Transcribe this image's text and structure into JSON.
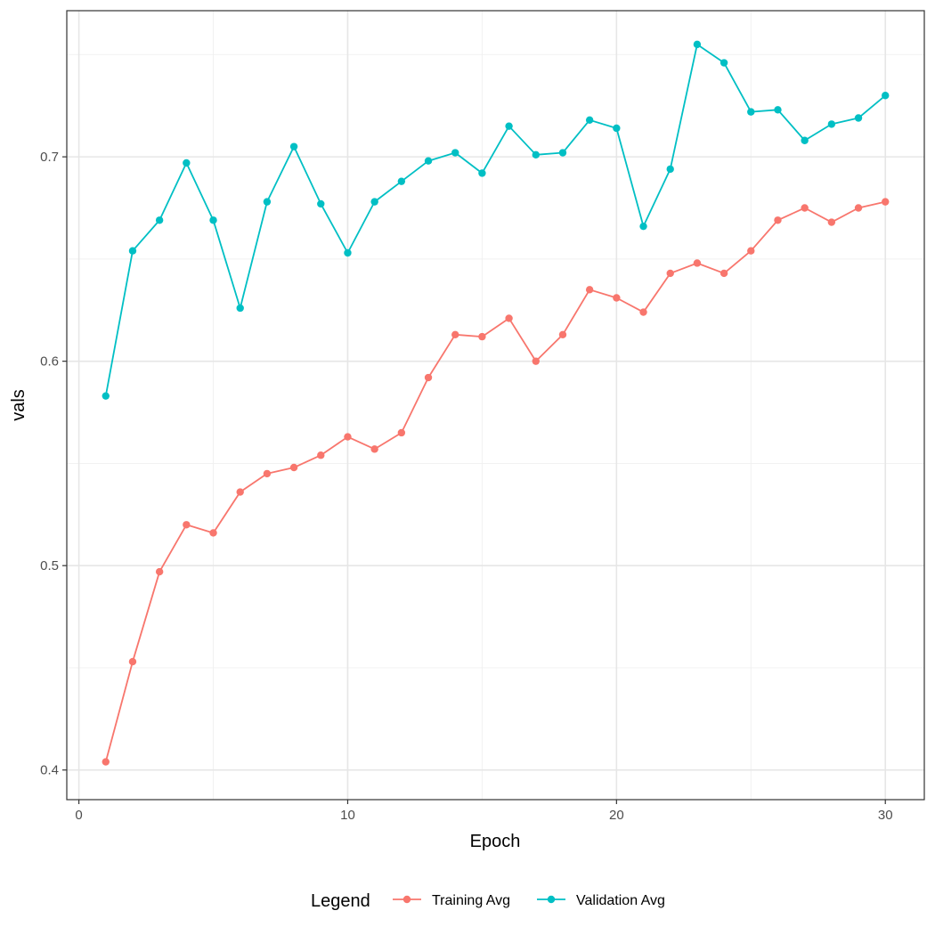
{
  "chart_data": {
    "type": "line",
    "title": "",
    "xlabel": "Epoch",
    "ylabel": "vals",
    "xlim": [
      -0.45,
      31.45
    ],
    "ylim": [
      0.3855,
      0.7715
    ],
    "x_ticks": [
      0,
      10,
      20,
      30
    ],
    "y_ticks": [
      0.4,
      0.5,
      0.6,
      0.7
    ],
    "x_tick_labels": [
      "0",
      "10",
      "20",
      "30"
    ],
    "y_tick_labels": [
      "0.4",
      "0.5",
      "0.6",
      "0.7"
    ],
    "grid": true,
    "legend": {
      "title": "Legend",
      "position": "bottom"
    },
    "x": [
      1,
      2,
      3,
      4,
      5,
      6,
      7,
      8,
      9,
      10,
      11,
      12,
      13,
      14,
      15,
      16,
      17,
      18,
      19,
      20,
      21,
      22,
      23,
      24,
      25,
      26,
      27,
      28,
      29,
      30
    ],
    "series": [
      {
        "name": "Training Avg",
        "color": "#F8766D",
        "values": [
          0.404,
          0.453,
          0.497,
          0.52,
          0.516,
          0.536,
          0.545,
          0.548,
          0.554,
          0.563,
          0.557,
          0.565,
          0.592,
          0.613,
          0.612,
          0.621,
          0.6,
          0.613,
          0.635,
          0.631,
          0.624,
          0.643,
          0.648,
          0.643,
          0.654,
          0.669,
          0.675,
          0.668,
          0.675,
          0.678
        ]
      },
      {
        "name": "Validation Avg",
        "color": "#00BFC4",
        "values": [
          0.583,
          0.654,
          0.669,
          0.697,
          0.669,
          0.626,
          0.678,
          0.705,
          0.677,
          0.653,
          0.678,
          0.688,
          0.698,
          0.702,
          0.692,
          0.715,
          0.701,
          0.702,
          0.718,
          0.714,
          0.666,
          0.694,
          0.755,
          0.746,
          0.722,
          0.723,
          0.708,
          0.716,
          0.719,
          0.73
        ]
      }
    ]
  }
}
